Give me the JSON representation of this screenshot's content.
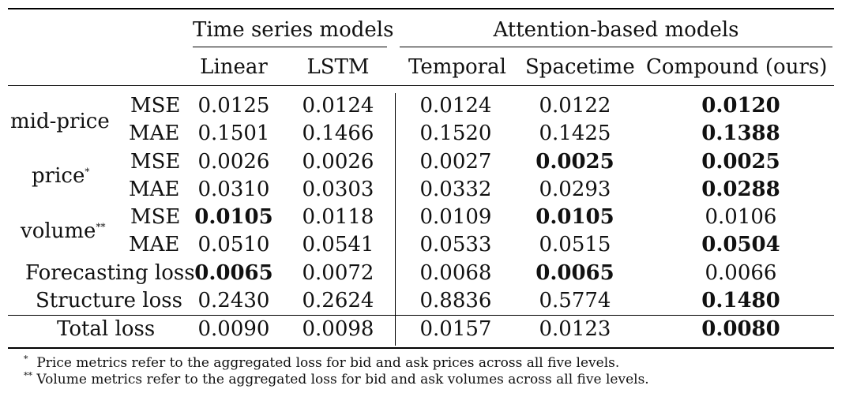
{
  "groups": [
    {
      "label": "Time series models"
    },
    {
      "label": "Attention-based models"
    }
  ],
  "columns": [
    "Linear",
    "LSTM",
    "Temporal",
    "Spacetime",
    "Compound (ours)"
  ],
  "rows": [
    {
      "group": "mid-price",
      "sup": "",
      "metric": "MSE",
      "values": [
        "0.0125",
        "0.0124",
        "0.0124",
        "0.0122",
        "0.0120"
      ],
      "bold": [
        false,
        false,
        false,
        false,
        true
      ]
    },
    {
      "group": "",
      "sup": "",
      "metric": "MAE",
      "values": [
        "0.1501",
        "0.1466",
        "0.1520",
        "0.1425",
        "0.1388"
      ],
      "bold": [
        false,
        false,
        false,
        false,
        true
      ]
    },
    {
      "group": "price",
      "sup": "*",
      "metric": "MSE",
      "values": [
        "0.0026",
        "0.0026",
        "0.0027",
        "0.0025",
        "0.0025"
      ],
      "bold": [
        false,
        false,
        false,
        true,
        true
      ]
    },
    {
      "group": "",
      "sup": "",
      "metric": "MAE",
      "values": [
        "0.0310",
        "0.0303",
        "0.0332",
        "0.0293",
        "0.0288"
      ],
      "bold": [
        false,
        false,
        false,
        false,
        true
      ]
    },
    {
      "group": "volume",
      "sup": "**",
      "metric": "MSE",
      "values": [
        "0.0105",
        "0.0118",
        "0.0109",
        "0.0105",
        "0.0106"
      ],
      "bold": [
        true,
        false,
        false,
        true,
        false
      ]
    },
    {
      "group": "",
      "sup": "",
      "metric": "MAE",
      "values": [
        "0.0510",
        "0.0541",
        "0.0533",
        "0.0515",
        "0.0504"
      ],
      "bold": [
        false,
        false,
        false,
        false,
        true
      ]
    },
    {
      "group": "Forecasting loss",
      "sup": "",
      "metric": "",
      "values": [
        "0.0065",
        "0.0072",
        "0.0068",
        "0.0065",
        "0.0066"
      ],
      "bold": [
        true,
        false,
        false,
        true,
        false
      ]
    },
    {
      "group": "Structure loss",
      "sup": "",
      "metric": "",
      "values": [
        "0.2430",
        "0.2624",
        "0.8836",
        "0.5774",
        "0.1480"
      ],
      "bold": [
        false,
        false,
        false,
        false,
        true
      ]
    },
    {
      "group": "Total loss",
      "sup": "",
      "metric": "",
      "values": [
        "0.0090",
        "0.0098",
        "0.0157",
        "0.0123",
        "0.0080"
      ],
      "bold": [
        false,
        false,
        false,
        false,
        true
      ]
    }
  ],
  "footnotes": [
    {
      "mark": "*",
      "text": "Price metrics refer to the aggregated loss for bid and ask prices across all five levels."
    },
    {
      "mark": "**",
      "text": "Volume metrics refer to the aggregated loss for bid and ask volumes across all five levels."
    }
  ]
}
